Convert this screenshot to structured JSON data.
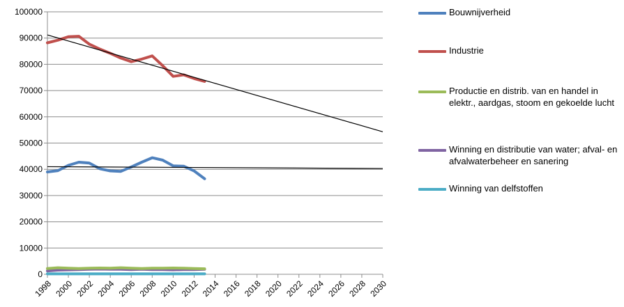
{
  "chart_data": {
    "type": "line",
    "xlim": [
      1998,
      2030
    ],
    "ylim": [
      0,
      100000
    ],
    "x_ticks": [
      1998,
      2000,
      2002,
      2004,
      2006,
      2008,
      2010,
      2012,
      2014,
      2016,
      2018,
      2020,
      2022,
      2024,
      2026,
      2028,
      2030
    ],
    "y_ticks": [
      0,
      10000,
      20000,
      30000,
      40000,
      50000,
      60000,
      70000,
      80000,
      90000,
      100000
    ],
    "grid": "horizontal",
    "legend_position": "right",
    "series": [
      {
        "name": "Bouwnijverheid",
        "color": "#4f81bd",
        "x": [
          1998,
          1999,
          2000,
          2001,
          2002,
          2003,
          2004,
          2005,
          2006,
          2007,
          2008,
          2009,
          2010,
          2011,
          2012,
          2013
        ],
        "values": [
          39000,
          39500,
          41500,
          42700,
          42400,
          40200,
          39400,
          39200,
          40900,
          42700,
          44400,
          43500,
          41300,
          41200,
          39400,
          36400
        ]
      },
      {
        "name": "Industrie",
        "color": "#c0504d",
        "x": [
          1998,
          1999,
          2000,
          2001,
          2002,
          2003,
          2004,
          2005,
          2006,
          2007,
          2008,
          2009,
          2010,
          2011,
          2012,
          2013
        ],
        "values": [
          88200,
          89200,
          90500,
          90700,
          87700,
          85800,
          84200,
          82400,
          81000,
          82000,
          83200,
          79500,
          75400,
          76000,
          74600,
          73500
        ]
      },
      {
        "name": "Productie en distrib. van en handel in elektr., aardgas, stoom en gekoelde lucht",
        "color": "#9bbb59",
        "x": [
          1998,
          1999,
          2000,
          2001,
          2002,
          2003,
          2004,
          2005,
          2006,
          2007,
          2008,
          2009,
          2010,
          2011,
          2012,
          2013
        ],
        "values": [
          2200,
          2500,
          2300,
          2200,
          2300,
          2400,
          2300,
          2500,
          2300,
          2200,
          2300,
          2300,
          2400,
          2300,
          2200,
          2100
        ]
      },
      {
        "name": "Winning en distributie van water; afval- en afvalwaterbeheer en sanering",
        "color": "#8064a2",
        "x": [
          1998,
          1999,
          2000,
          2001,
          2002,
          2003,
          2004,
          2005,
          2006,
          2007,
          2008,
          2009,
          2010,
          2011,
          2012,
          2013
        ],
        "values": [
          1300,
          1600,
          1700,
          1800,
          1900,
          2000,
          1900,
          1900,
          1800,
          1900,
          1800,
          1800,
          1700,
          1800,
          1800,
          1900
        ]
      },
      {
        "name": "Winning van delfstoffen",
        "color": "#4bacc6",
        "x": [
          1998,
          1999,
          2000,
          2001,
          2002,
          2003,
          2004,
          2005,
          2006,
          2007,
          2008,
          2009,
          2010,
          2011,
          2012,
          2013
        ],
        "values": [
          150,
          150,
          150,
          150,
          150,
          150,
          150,
          150,
          150,
          150,
          150,
          150,
          150,
          150,
          150,
          150
        ]
      }
    ],
    "trendlines": [
      {
        "series": "Industrie",
        "color": "#000000",
        "x": [
          1998,
          2030
        ],
        "values": [
          91200,
          54300
        ]
      },
      {
        "series": "Bouwnijverheid",
        "color": "#000000",
        "x": [
          1998,
          2030
        ],
        "values": [
          41000,
          40300
        ]
      }
    ]
  },
  "legend": {
    "items": [
      {
        "label": "Bouwnijverheid",
        "color": "#4f81bd"
      },
      {
        "label": "Industrie",
        "color": "#c0504d"
      },
      {
        "label": "Productie en distrib. van en handel in elektr., aardgas, stoom en gekoelde lucht",
        "color": "#9bbb59"
      },
      {
        "label": "Winning en distributie van water; afval- en afvalwaterbeheer en sanering",
        "color": "#8064a2"
      },
      {
        "label": "Winning van delfstoffen",
        "color": "#4bacc6"
      }
    ]
  }
}
